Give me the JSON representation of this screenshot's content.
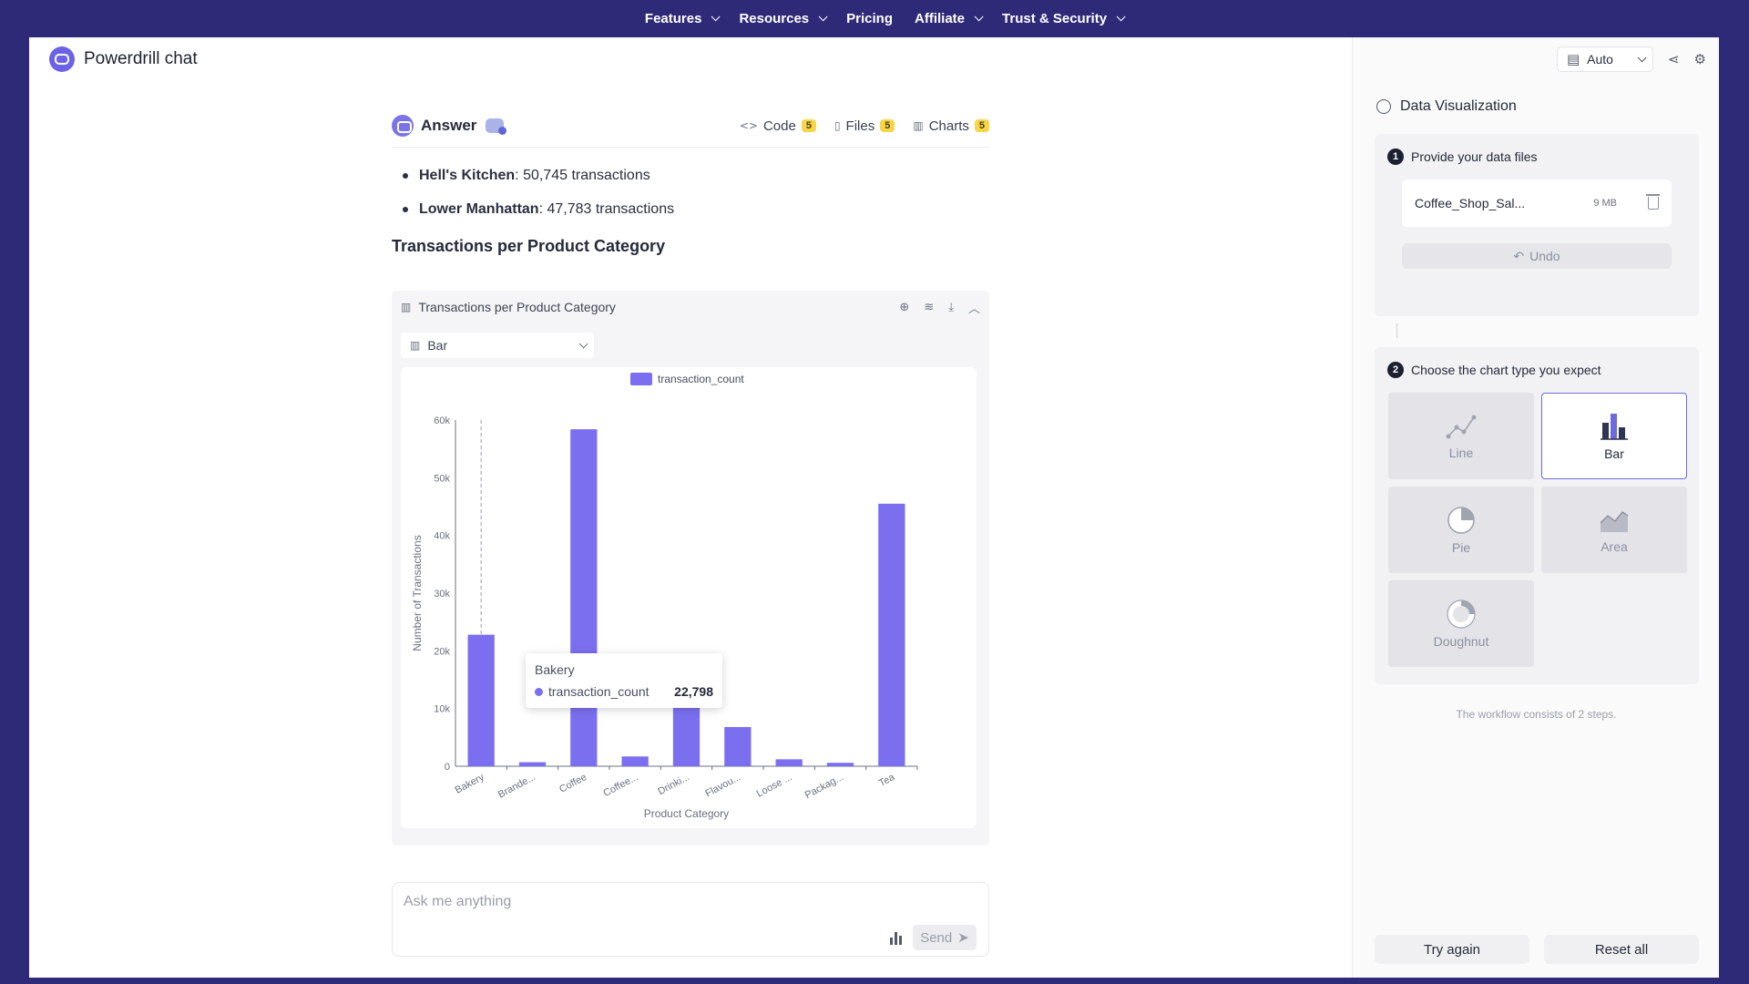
{
  "nav": {
    "items": [
      {
        "label": "Features",
        "dropdown": true
      },
      {
        "label": "Resources",
        "dropdown": true
      },
      {
        "label": "Pricing",
        "dropdown": false
      },
      {
        "label": "Affiliate",
        "dropdown": true
      },
      {
        "label": "Trust & Security",
        "dropdown": true
      }
    ]
  },
  "app": {
    "title": "Powerdrill chat"
  },
  "answer": {
    "label": "Answer",
    "tabs": [
      {
        "label": "Code",
        "count": "5",
        "icon": "code-icon"
      },
      {
        "label": "Files",
        "count": "5",
        "icon": "file-icon"
      },
      {
        "label": "Charts",
        "count": "5",
        "icon": "chart-icon"
      }
    ],
    "bullets": [
      {
        "name": "Hell's Kitchen",
        "value": ": 50,745 transactions"
      },
      {
        "name": "Lower Manhattan",
        "value": ": 47,783 transactions"
      }
    ],
    "section_title": "Transactions per Product Category"
  },
  "chart_card": {
    "title": "Transactions per Product Category",
    "chart_type_selected": "Bar"
  },
  "chart_data": {
    "type": "bar",
    "categories": [
      "Bakery",
      "Brande...",
      "Coffee",
      "Coffee...",
      "Drinki...",
      "Flavou...",
      "Loose ...",
      "Packag...",
      "Tea"
    ],
    "series": [
      {
        "name": "transaction_count",
        "values": [
          22798,
          700,
          58400,
          1700,
          11500,
          6800,
          1200,
          600,
          45500
        ],
        "color": "#7b6ff0"
      }
    ],
    "xlabel": "Product Category",
    "ylabel": "Number of Transactions",
    "ylim": [
      0,
      60000
    ],
    "yticks": [
      "0",
      "10k",
      "20k",
      "30k",
      "40k",
      "50k",
      "60k"
    ],
    "legend_placement": "top-center",
    "grid": false
  },
  "tooltip": {
    "title": "Bakery",
    "series": "transaction_count",
    "value": "22,798"
  },
  "composer": {
    "placeholder": "Ask me anything",
    "send_label": "Send"
  },
  "panel": {
    "mode": "Auto",
    "title": "Data Visualization",
    "step1": {
      "num": "1",
      "label": "Provide your data files",
      "file_name": "Coffee_Shop_Sal...",
      "file_size": "9 MB",
      "undo_label": "Undo"
    },
    "step2": {
      "num": "2",
      "label": "Choose the chart type you expect",
      "types": [
        {
          "label": "Line",
          "selected": false
        },
        {
          "label": "Bar",
          "selected": true
        },
        {
          "label": "Pie",
          "selected": false
        },
        {
          "label": "Area",
          "selected": false
        },
        {
          "label": "Doughnut",
          "selected": false
        }
      ]
    },
    "workflow_note": "The workflow consists of 2 steps.",
    "try_again_label": "Try again",
    "reset_label": "Reset all"
  }
}
